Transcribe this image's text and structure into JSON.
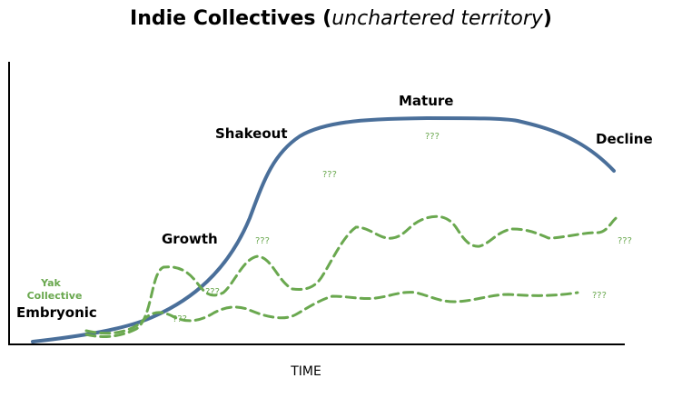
{
  "title": {
    "main": "Indie Collectives",
    "open_paren": "(",
    "subtitle": "unchartered territory",
    "close_paren": ")"
  },
  "axis": {
    "x_label": "TIME"
  },
  "stages": {
    "embryonic": "Embryonic",
    "growth": "Growth",
    "shakeout": "Shakeout",
    "mature": "Mature",
    "decline": "Decline"
  },
  "annotations": {
    "yak_line1": "Yak",
    "yak_line2": "Collective",
    "unknown": "???"
  },
  "colors": {
    "main_curve": "#4a6f9a",
    "dashed_curves": "#6aa84f"
  }
}
